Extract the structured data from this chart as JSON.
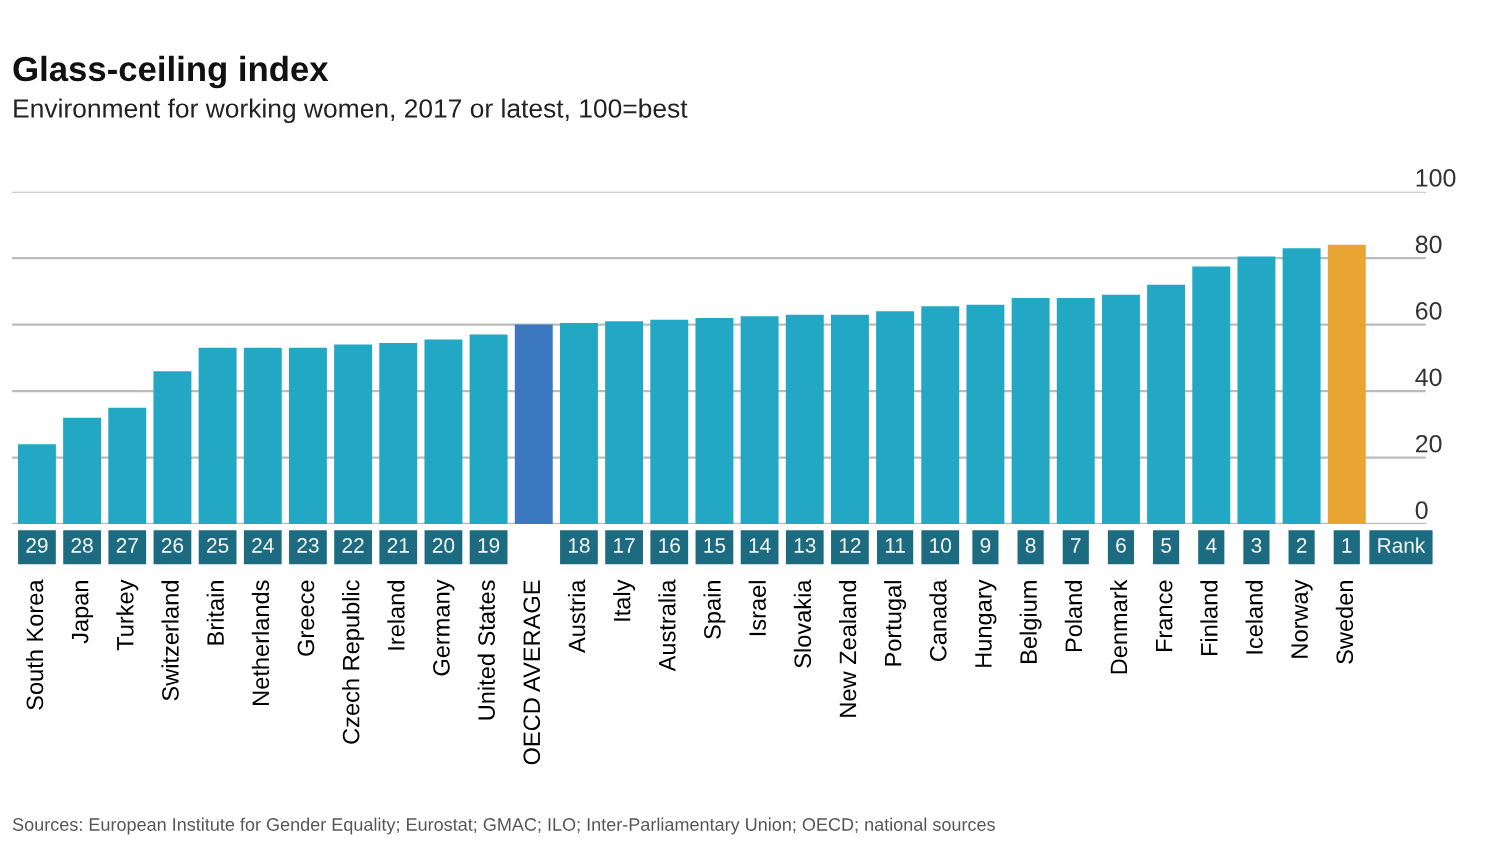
{
  "chart_data": {
    "type": "bar",
    "title": "Glass-ceiling index",
    "subtitle": "Environment for working women, 2017 or latest, 100=best",
    "categories": [
      "South Korea",
      "Japan",
      "Turkey",
      "Switzerland",
      "Britain",
      "Netherlands",
      "Greece",
      "Czech Republic",
      "Ireland",
      "Germany",
      "United States",
      "OECD AVERAGE",
      "Austria",
      "Italy",
      "Australia",
      "Spain",
      "Israel",
      "Slovakia",
      "New Zealand",
      "Portugal",
      "Canada",
      "Hungary",
      "Belgium",
      "Poland",
      "Denmark",
      "France",
      "Finland",
      "Iceland",
      "Norway",
      "Sweden"
    ],
    "values": [
      24,
      32,
      35,
      46,
      53,
      53,
      53,
      54,
      54.5,
      55.5,
      57,
      60,
      60.5,
      61,
      61.5,
      62,
      62.5,
      63,
      63,
      64,
      65.5,
      66,
      68,
      68,
      69,
      72,
      77.5,
      80.5,
      83,
      84
    ],
    "colors": [
      "#22a7c4",
      "#22a7c4",
      "#22a7c4",
      "#22a7c4",
      "#22a7c4",
      "#22a7c4",
      "#22a7c4",
      "#22a7c4",
      "#22a7c4",
      "#22a7c4",
      "#22a7c4",
      "#3b78bf",
      "#22a7c4",
      "#22a7c4",
      "#22a7c4",
      "#22a7c4",
      "#22a7c4",
      "#22a7c4",
      "#22a7c4",
      "#22a7c4",
      "#22a7c4",
      "#22a7c4",
      "#22a7c4",
      "#22a7c4",
      "#22a7c4",
      "#22a7c4",
      "#22a7c4",
      "#22a7c4",
      "#22a7c4",
      "#e8a532"
    ],
    "ylim": [
      0,
      100
    ],
    "yticks": [
      0,
      20,
      40,
      60,
      80,
      100
    ],
    "grid": "y",
    "annotations": [
      "Rank",
      "29",
      "28",
      "27",
      "26",
      "25",
      "24",
      "23",
      "22",
      "21",
      "20",
      "19",
      "18",
      "17",
      "16",
      "15",
      "14",
      "13",
      "12",
      "11",
      "10",
      "9",
      "8",
      "7",
      "6",
      "5",
      "4",
      "3",
      "2",
      "1",
      "Sources: European Institute for Gender Equality; Eurostat; GMAC; ILO; Inter-Parliamentary Union; OECD; national sources"
    ]
  }
}
